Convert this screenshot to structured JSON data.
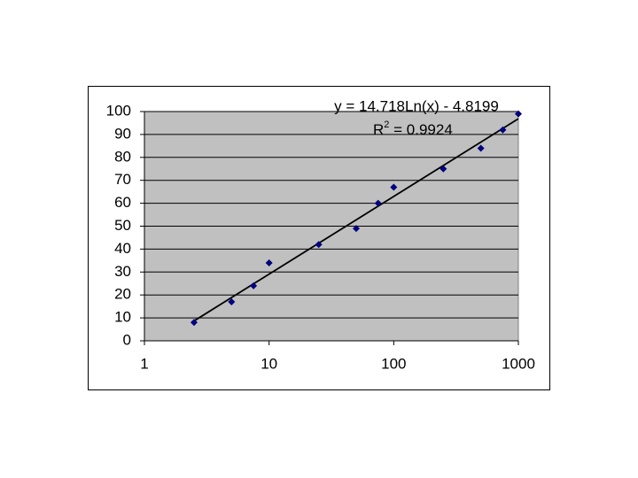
{
  "chart_data": {
    "type": "scatter",
    "log_x": true,
    "grid": true,
    "plot_color": "#c0c0c0",
    "color": "#000080",
    "trendline_color": "#000000",
    "x": [
      2.5,
      5,
      7.5,
      10,
      25,
      50,
      75,
      100,
      250,
      500,
      750,
      1000
    ],
    "values": [
      8,
      17,
      24,
      34,
      42,
      49,
      60,
      67,
      75,
      84,
      92,
      99
    ],
    "xlim": [
      1,
      1000
    ],
    "xticks": [
      1,
      10,
      100,
      1000
    ],
    "ylim": [
      0,
      100
    ],
    "yticks": [
      0,
      10,
      20,
      30,
      40,
      50,
      60,
      70,
      80,
      90,
      100
    ],
    "trendline": {
      "slope": 14.718,
      "intercept": -4.8199,
      "label": "y = 14.718Ln(x) - 4.8199",
      "r2_base": "R",
      "r2_sup": "2",
      "r2_text": " = 0.9924"
    }
  }
}
